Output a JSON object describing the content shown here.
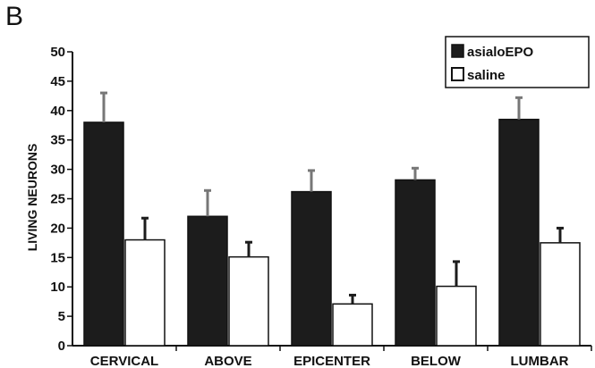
{
  "panel_label": "B",
  "colors": {
    "series_filled": "#1c1c1c",
    "series_open": "#ffffff",
    "error_bar_filled": "#777777",
    "error_bar_open": "#1c1c1c",
    "axis": "#111111"
  },
  "chart_data": {
    "type": "bar",
    "title": "",
    "xlabel": "",
    "ylabel": "LIVING NEURONS",
    "ylim": [
      0,
      50
    ],
    "yticks": [
      0,
      5,
      10,
      15,
      20,
      25,
      30,
      35,
      40,
      45,
      50
    ],
    "categories": [
      "CERVICAL",
      "ABOVE",
      "EPICENTER",
      "BELOW",
      "LUMBAR"
    ],
    "series": [
      {
        "name": "asialoEPO",
        "values": [
          38,
          22,
          26.2,
          28.2,
          38.5
        ],
        "errors": [
          5,
          4.4,
          3.6,
          2,
          3.7
        ]
      },
      {
        "name": "saline",
        "values": [
          18,
          15.1,
          7.1,
          10.1,
          17.5
        ],
        "errors": [
          3.7,
          2.5,
          1.5,
          4.2,
          2.5
        ]
      }
    ],
    "legend_position": "top-right",
    "grid": false
  }
}
